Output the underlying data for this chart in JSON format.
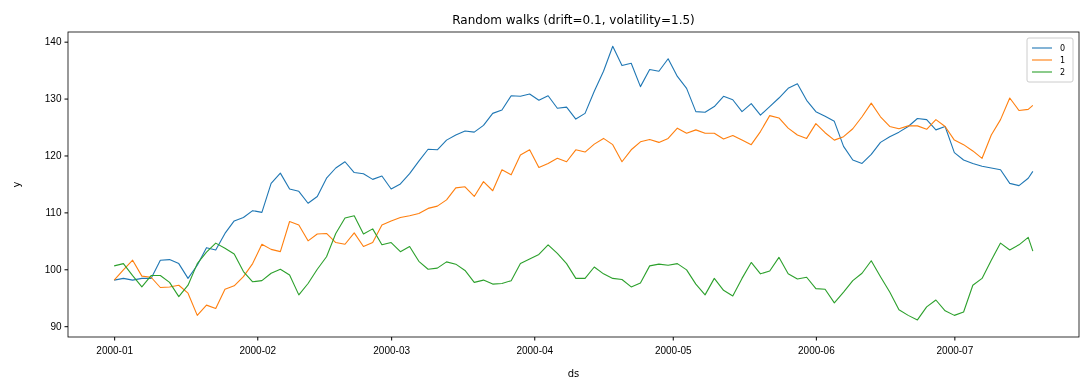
{
  "chart_data": {
    "type": "line",
    "title": "Random walks (drift=0.1, volatility=1.5)",
    "xlabel": "ds",
    "ylabel": "y",
    "x": [
      "2000-01-01",
      "2000-01-03",
      "2000-01-05",
      "2000-01-07",
      "2000-01-09",
      "2000-01-11",
      "2000-01-13",
      "2000-01-15",
      "2000-01-17",
      "2000-01-19",
      "2000-01-21",
      "2000-01-23",
      "2000-01-25",
      "2000-01-27",
      "2000-01-29",
      "2000-01-31",
      "2000-02-02",
      "2000-02-04",
      "2000-02-06",
      "2000-02-08",
      "2000-02-10",
      "2000-02-12",
      "2000-02-14",
      "2000-02-16",
      "2000-02-18",
      "2000-02-20",
      "2000-02-22",
      "2000-02-24",
      "2000-02-26",
      "2000-02-28",
      "2000-03-01",
      "2000-03-03",
      "2000-03-05",
      "2000-03-07",
      "2000-03-09",
      "2000-03-11",
      "2000-03-13",
      "2000-03-15",
      "2000-03-17",
      "2000-03-19",
      "2000-03-21",
      "2000-03-23",
      "2000-03-25",
      "2000-03-27",
      "2000-03-29",
      "2000-03-31",
      "2000-04-02",
      "2000-04-04",
      "2000-04-06",
      "2000-04-08",
      "2000-04-10",
      "2000-04-12",
      "2000-04-14",
      "2000-04-16",
      "2000-04-18",
      "2000-04-20",
      "2000-04-22",
      "2000-04-24",
      "2000-04-26",
      "2000-04-28",
      "2000-04-30",
      "2000-05-02",
      "2000-05-04",
      "2000-05-06",
      "2000-05-08",
      "2000-05-10",
      "2000-05-12",
      "2000-05-14",
      "2000-05-16",
      "2000-05-18",
      "2000-05-20",
      "2000-05-22",
      "2000-05-24",
      "2000-05-26",
      "2000-05-28",
      "2000-05-30",
      "2000-06-01",
      "2000-06-03",
      "2000-06-05",
      "2000-06-07",
      "2000-06-09",
      "2000-06-11",
      "2000-06-13",
      "2000-06-15",
      "2000-06-17",
      "2000-06-19",
      "2000-06-21",
      "2000-06-23",
      "2000-06-25",
      "2000-06-27",
      "2000-06-29",
      "2000-07-01",
      "2000-07-03",
      "2000-07-05",
      "2000-07-07",
      "2000-07-09",
      "2000-07-11",
      "2000-07-13",
      "2000-07-15",
      "2000-07-17",
      "2000-07-18"
    ],
    "series": [
      {
        "name": "0",
        "color": "#1f77b4",
        "values": [
          98.1,
          98.4,
          98.1,
          98.4,
          98.4,
          101.6,
          101.7,
          101.0,
          98.4,
          100.7,
          103.8,
          103.4,
          106.3,
          108.5,
          109.1,
          110.3,
          110.0,
          115.1,
          116.9,
          114.1,
          113.7,
          111.6,
          112.8,
          116.0,
          117.8,
          118.9,
          117.0,
          116.8,
          115.8,
          116.4,
          114.1,
          115.0,
          116.8,
          119.0,
          121.1,
          121.0,
          122.7,
          123.6,
          124.3,
          124.1,
          125.3,
          127.4,
          128.0,
          130.5,
          130.4,
          130.8,
          129.7,
          130.5,
          128.3,
          128.5,
          126.4,
          127.4,
          131.3,
          134.8,
          139.2,
          135.8,
          136.2,
          132.1,
          135.1,
          134.8,
          137.0,
          133.9,
          131.8,
          127.7,
          127.6,
          128.6,
          130.4,
          129.8,
          127.7,
          129.1,
          127.1,
          128.6,
          130.1,
          131.8,
          132.6,
          129.7,
          127.7,
          126.9,
          126.0,
          121.6,
          119.2,
          118.6,
          120.2,
          122.3,
          123.3,
          124.1,
          125.1,
          126.5,
          126.3,
          124.5,
          125.1,
          120.5,
          119.2,
          118.6,
          118.1,
          117.8,
          117.5,
          115.1,
          114.7,
          116.0,
          117.2
        ]
      },
      {
        "name": "1",
        "color": "#ff7f0e",
        "values": [
          98.1,
          99.9,
          101.6,
          98.8,
          98.6,
          96.8,
          96.9,
          97.2,
          95.8,
          91.9,
          93.7,
          93.1,
          96.5,
          97.1,
          98.7,
          101.0,
          104.4,
          103.5,
          103.1,
          108.4,
          107.8,
          105.0,
          106.2,
          106.3,
          104.7,
          104.4,
          106.4,
          104.0,
          104.7,
          107.8,
          108.5,
          109.1,
          109.4,
          109.8,
          110.7,
          111.1,
          112.2,
          114.3,
          114.5,
          112.8,
          115.4,
          113.8,
          117.5,
          116.6,
          120.1,
          121.0,
          117.9,
          118.6,
          119.5,
          118.9,
          121.0,
          120.6,
          122.0,
          123.0,
          121.9,
          118.9,
          121.0,
          122.4,
          122.8,
          122.3,
          123.0,
          124.8,
          123.9,
          124.5,
          123.9,
          123.9,
          122.9,
          123.5,
          122.7,
          121.9,
          124.2,
          127.0,
          126.6,
          124.8,
          123.6,
          123.0,
          125.6,
          124.0,
          122.7,
          123.3,
          124.7,
          126.8,
          129.2,
          126.8,
          125.1,
          124.7,
          125.2,
          125.2,
          124.6,
          126.3,
          125.1,
          122.7,
          121.9,
          120.8,
          119.5,
          123.6,
          126.3,
          130.1,
          127.9,
          128.1,
          128.8
        ]
      },
      {
        "name": "2",
        "color": "#2ca02c",
        "values": [
          100.6,
          101.0,
          98.9,
          96.9,
          98.9,
          98.9,
          97.7,
          95.2,
          97.2,
          101.0,
          103.0,
          104.6,
          103.7,
          102.7,
          99.6,
          97.8,
          98.0,
          99.3,
          100.0,
          99.0,
          95.5,
          97.5,
          100.0,
          102.2,
          106.3,
          109.0,
          109.4,
          106.2,
          107.1,
          104.3,
          104.7,
          103.1,
          104.0,
          101.4,
          100.0,
          100.2,
          101.3,
          100.9,
          99.8,
          97.7,
          98.1,
          97.4,
          97.5,
          98.0,
          101.0,
          101.8,
          102.6,
          104.3,
          102.8,
          101.0,
          98.4,
          98.4,
          100.4,
          99.2,
          98.4,
          98.2,
          96.9,
          97.6,
          100.6,
          100.9,
          100.7,
          101.0,
          99.9,
          97.4,
          95.5,
          98.4,
          96.3,
          95.3,
          98.4,
          101.2,
          99.2,
          99.7,
          102.1,
          99.2,
          98.3,
          98.6,
          96.6,
          96.5,
          94.1,
          96.0,
          98.0,
          99.3,
          101.5,
          98.7,
          96.0,
          92.9,
          91.9,
          91.1,
          93.4,
          94.6,
          92.7,
          91.9,
          92.5,
          97.2,
          98.4,
          101.6,
          104.6,
          103.4,
          104.3,
          105.6,
          103.2
        ]
      }
    ],
    "xlim": [
      "1999-12-22",
      "2000-07-28"
    ],
    "xticks": [
      {
        "value": "2000-01-01",
        "label": "2000-01"
      },
      {
        "value": "2000-02-01",
        "label": "2000-02"
      },
      {
        "value": "2000-03-01",
        "label": "2000-03"
      },
      {
        "value": "2000-04-01",
        "label": "2000-04"
      },
      {
        "value": "2000-05-01",
        "label": "2000-05"
      },
      {
        "value": "2000-06-01",
        "label": "2000-06"
      },
      {
        "value": "2000-07-01",
        "label": "2000-07"
      }
    ],
    "ylim": [
      88.1,
      141.7
    ],
    "yticks": [
      90,
      100,
      110,
      120,
      130,
      140
    ],
    "legend": "top right",
    "marker": "none",
    "line_style": "solid",
    "grid": false
  }
}
